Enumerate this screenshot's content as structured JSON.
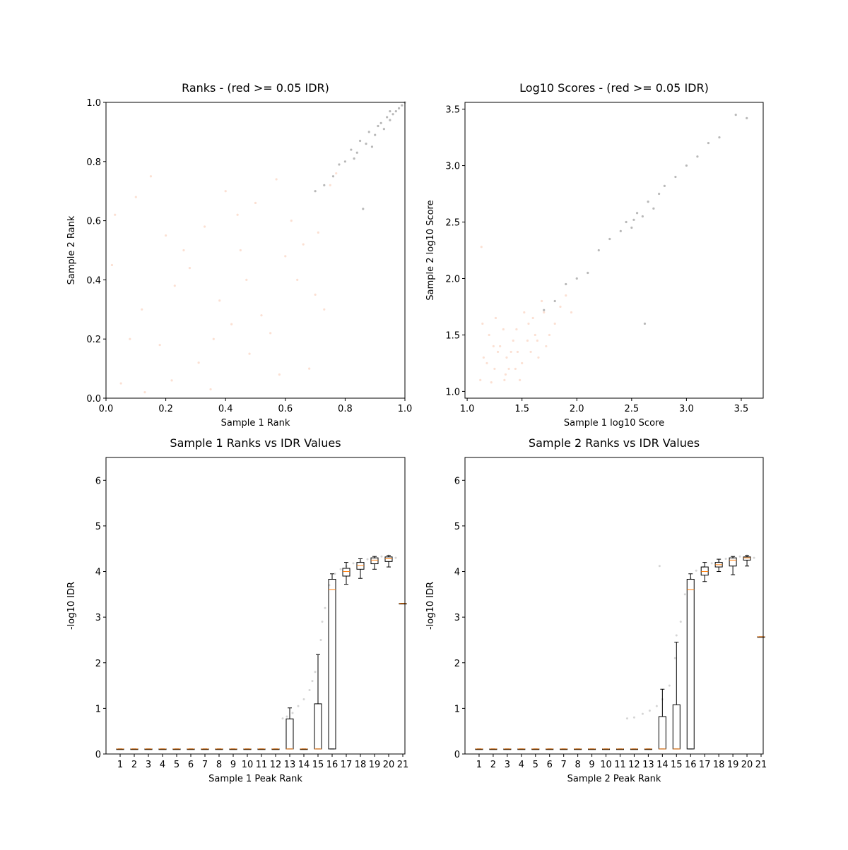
{
  "chart_data": [
    {
      "type": "scatter",
      "title": "Ranks - (red >= 0.05 IDR)",
      "x_label": "Sample 1 Rank",
      "y_label": "Sample 2 Rank",
      "xlim": [
        0,
        1
      ],
      "ylim": [
        0,
        1
      ],
      "xticks": [
        {
          "value": 0,
          "label": "0.0"
        },
        0.2,
        0.4,
        0.6,
        0.8,
        {
          "value": 1,
          "label": "1.0"
        }
      ],
      "yticks": [
        {
          "value": 0,
          "label": "0.0"
        },
        0.2,
        0.4,
        0.6,
        0.8,
        {
          "value": 1,
          "label": "1.0"
        }
      ],
      "series": [
        {
          "color": "#f4a582",
          "x": [
            0.05,
            0.12,
            0.2,
            0.31,
            0.4,
            0.47,
            0.55,
            0.62,
            0.7,
            0.75,
            0.02,
            0.1,
            0.18,
            0.26,
            0.35,
            0.44,
            0.52,
            0.6,
            0.68,
            0.08,
            0.15,
            0.23,
            0.33,
            0.42,
            0.5,
            0.58,
            0.66,
            0.73,
            0.03,
            0.13,
            0.28,
            0.38,
            0.48,
            0.57,
            0.64,
            0.71,
            0.22,
            0.36,
            0.45,
            0.77
          ],
          "y": [
            0.05,
            0.3,
            0.55,
            0.12,
            0.7,
            0.4,
            0.22,
            0.6,
            0.35,
            0.72,
            0.45,
            0.68,
            0.18,
            0.5,
            0.03,
            0.62,
            0.28,
            0.48,
            0.1,
            0.2,
            0.75,
            0.38,
            0.58,
            0.25,
            0.66,
            0.08,
            0.52,
            0.3,
            0.62,
            0.02,
            0.44,
            0.33,
            0.15,
            0.74,
            0.4,
            0.56,
            0.06,
            0.2,
            0.5,
            0.76
          ]
        },
        {
          "color": "#333333",
          "x": [
            0.7,
            0.73,
            0.76,
            0.78,
            0.8,
            0.82,
            0.84,
            0.85,
            0.87,
            0.88,
            0.9,
            0.91,
            0.92,
            0.93,
            0.94,
            0.95,
            0.96,
            0.97,
            0.98,
            0.99,
            0.86,
            0.83,
            0.89,
            0.95,
            1.0
          ],
          "y": [
            0.7,
            0.72,
            0.75,
            0.79,
            0.8,
            0.84,
            0.83,
            0.87,
            0.86,
            0.9,
            0.89,
            0.92,
            0.93,
            0.91,
            0.95,
            0.94,
            0.96,
            0.97,
            0.98,
            0.99,
            0.64,
            0.81,
            0.85,
            0.97,
            1.0
          ]
        }
      ]
    },
    {
      "type": "scatter",
      "title": "Log10 Scores - (red >= 0.05 IDR)",
      "x_label": "Sample 1 log10 Score",
      "y_label": "Sample 2 log10 Score",
      "xlim": [
        0.98,
        3.7
      ],
      "ylim": [
        0.94,
        3.56
      ],
      "xticks": [
        {
          "value": 1,
          "label": "1.0"
        },
        1.5,
        {
          "value": 2,
          "label": "2.0"
        },
        2.5,
        {
          "value": 3,
          "label": "3.0"
        },
        3.5
      ],
      "yticks": [
        {
          "value": 1,
          "label": "1.0"
        },
        1.5,
        {
          "value": 2,
          "label": "2.0"
        },
        2.5,
        {
          "value": 3,
          "label": "3.0"
        },
        3.5
      ],
      "series": [
        {
          "color": "#f4a582",
          "x": [
            1.12,
            1.15,
            1.2,
            1.25,
            1.3,
            1.35,
            1.4,
            1.45,
            1.5,
            1.55,
            1.6,
            1.65,
            1.7,
            1.75,
            1.8,
            1.85,
            1.9,
            1.14,
            1.22,
            1.28,
            1.33,
            1.38,
            1.42,
            1.48,
            1.52,
            1.58,
            1.62,
            1.68,
            1.72,
            1.18,
            1.26,
            1.36,
            1.44,
            1.56,
            1.64,
            1.13,
            1.24,
            1.34,
            1.46,
            1.95
          ],
          "y": [
            1.1,
            1.3,
            1.5,
            1.2,
            1.4,
            1.15,
            1.35,
            1.55,
            1.25,
            1.45,
            1.65,
            1.3,
            1.7,
            1.5,
            1.6,
            1.75,
            1.85,
            1.6,
            1.08,
            1.35,
            1.55,
            1.2,
            1.45,
            1.1,
            1.7,
            1.35,
            1.5,
            1.8,
            1.4,
            1.25,
            1.65,
            1.3,
            1.2,
            1.6,
            1.45,
            2.28,
            1.4,
            1.1,
            1.35,
            1.7
          ]
        },
        {
          "color": "#333333",
          "x": [
            1.7,
            1.8,
            1.9,
            2.0,
            2.1,
            2.2,
            2.3,
            2.4,
            2.45,
            2.5,
            2.55,
            2.6,
            2.65,
            2.7,
            2.75,
            2.8,
            2.9,
            3.0,
            3.1,
            3.2,
            3.3,
            3.45,
            3.55,
            2.62,
            2.52
          ],
          "y": [
            1.72,
            1.8,
            1.95,
            2.0,
            2.05,
            2.25,
            2.35,
            2.42,
            2.5,
            2.45,
            2.58,
            2.55,
            2.68,
            2.62,
            2.75,
            2.82,
            2.9,
            3.0,
            3.08,
            3.2,
            3.25,
            3.45,
            3.42,
            1.6,
            2.52
          ]
        }
      ]
    },
    {
      "type": "box",
      "title": "Sample 1 Ranks vs IDR Values",
      "x_label": "Sample 1 Peak Rank",
      "y_label": "-log10 IDR",
      "xlim": [
        0,
        21.15
      ],
      "ylim": [
        0,
        6.5
      ],
      "xticks": [
        1,
        2,
        3,
        4,
        5,
        6,
        7,
        8,
        9,
        10,
        11,
        12,
        13,
        14,
        15,
        16,
        17,
        18,
        19,
        20,
        21
      ],
      "yticks": [
        0,
        1,
        2,
        3,
        4,
        5,
        6
      ],
      "median_color": "#ff7f0e",
      "x": [
        1,
        2,
        3,
        4,
        5,
        6,
        7,
        8,
        9,
        10,
        11,
        12,
        13,
        14,
        15,
        16,
        17,
        18,
        19,
        20,
        21
      ],
      "boxes": [
        [
          0.11,
          0.11,
          0.11,
          0.11,
          0.11
        ],
        [
          0.11,
          0.11,
          0.11,
          0.11,
          0.11
        ],
        [
          0.11,
          0.11,
          0.11,
          0.11,
          0.11
        ],
        [
          0.11,
          0.11,
          0.11,
          0.11,
          0.11
        ],
        [
          0.11,
          0.11,
          0.11,
          0.11,
          0.11
        ],
        [
          0.11,
          0.11,
          0.11,
          0.11,
          0.11
        ],
        [
          0.11,
          0.11,
          0.11,
          0.11,
          0.11
        ],
        [
          0.11,
          0.11,
          0.11,
          0.11,
          0.11
        ],
        [
          0.11,
          0.11,
          0.11,
          0.11,
          0.11
        ],
        [
          0.11,
          0.11,
          0.11,
          0.11,
          0.11
        ],
        [
          0.11,
          0.11,
          0.11,
          0.11,
          0.11
        ],
        [
          0.11,
          0.11,
          0.11,
          0.11,
          0.11
        ],
        [
          0.11,
          0.11,
          0.11,
          0.77,
          1.01
        ],
        [
          0.11,
          0.11,
          0.11,
          0.11,
          0.11
        ],
        [
          0.11,
          0.11,
          0.11,
          1.1,
          2.18
        ],
        [
          0.11,
          0.11,
          3.6,
          3.83,
          3.95
        ],
        [
          3.72,
          3.9,
          4.0,
          4.07,
          4.2
        ],
        [
          3.85,
          4.05,
          4.13,
          4.2,
          4.28
        ],
        [
          4.05,
          4.17,
          4.25,
          4.3,
          4.33
        ],
        [
          4.1,
          4.22,
          4.28,
          4.32,
          4.35
        ],
        [
          3.3,
          3.3,
          3.3,
          3.3,
          3.3
        ]
      ],
      "points": {
        "color": "#888888",
        "x": [
          12.5,
          12.8,
          13.2,
          13.6,
          14.0,
          14.4,
          14.8,
          15.2,
          15.5,
          15.8,
          16.2,
          16.6,
          17.0,
          17.5,
          18.0,
          18.5,
          19.0,
          19.5,
          20.0,
          20.5,
          14.6,
          15.3
        ],
        "y": [
          0.78,
          0.82,
          0.9,
          1.05,
          1.2,
          1.4,
          1.8,
          2.5,
          3.2,
          3.7,
          3.95,
          4.05,
          4.12,
          4.18,
          4.22,
          4.27,
          4.3,
          4.33,
          4.35,
          4.3,
          1.6,
          2.9
        ]
      }
    },
    {
      "type": "box",
      "title": "Sample 2 Ranks vs IDR Values",
      "x_label": "Sample 2 Peak Rank",
      "y_label": "-log10 IDR",
      "xlim": [
        0,
        21.15
      ],
      "ylim": [
        0,
        6.5
      ],
      "xticks": [
        1,
        2,
        3,
        4,
        5,
        6,
        7,
        8,
        9,
        10,
        11,
        12,
        13,
        14,
        15,
        16,
        17,
        18,
        19,
        20,
        21
      ],
      "yticks": [
        0,
        1,
        2,
        3,
        4,
        5,
        6
      ],
      "median_color": "#ff7f0e",
      "x": [
        1,
        2,
        3,
        4,
        5,
        6,
        7,
        8,
        9,
        10,
        11,
        12,
        13,
        14,
        15,
        16,
        17,
        18,
        19,
        20,
        21
      ],
      "boxes": [
        [
          0.11,
          0.11,
          0.11,
          0.11,
          0.11
        ],
        [
          0.11,
          0.11,
          0.11,
          0.11,
          0.11
        ],
        [
          0.11,
          0.11,
          0.11,
          0.11,
          0.11
        ],
        [
          0.11,
          0.11,
          0.11,
          0.11,
          0.11
        ],
        [
          0.11,
          0.11,
          0.11,
          0.11,
          0.11
        ],
        [
          0.11,
          0.11,
          0.11,
          0.11,
          0.11
        ],
        [
          0.11,
          0.11,
          0.11,
          0.11,
          0.11
        ],
        [
          0.11,
          0.11,
          0.11,
          0.11,
          0.11
        ],
        [
          0.11,
          0.11,
          0.11,
          0.11,
          0.11
        ],
        [
          0.11,
          0.11,
          0.11,
          0.11,
          0.11
        ],
        [
          0.11,
          0.11,
          0.11,
          0.11,
          0.11
        ],
        [
          0.11,
          0.11,
          0.11,
          0.11,
          0.11
        ],
        [
          0.11,
          0.11,
          0.11,
          0.11,
          0.11
        ],
        [
          0.11,
          0.11,
          0.11,
          0.82,
          1.42
        ],
        [
          0.11,
          0.11,
          0.11,
          1.08,
          2.45
        ],
        [
          0.11,
          0.11,
          3.6,
          3.83,
          3.95
        ],
        [
          3.78,
          3.92,
          4.0,
          4.1,
          4.2
        ],
        [
          4.0,
          4.1,
          4.15,
          4.2,
          4.27
        ],
        [
          3.93,
          4.12,
          4.25,
          4.3,
          4.33
        ],
        [
          4.12,
          4.25,
          4.3,
          4.32,
          4.35
        ],
        [
          2.57,
          2.57,
          2.57,
          2.57,
          2.57
        ]
      ],
      "points": {
        "color": "#888888",
        "x": [
          11.5,
          12.0,
          12.6,
          13.1,
          13.6,
          14.0,
          14.5,
          14.9,
          15.3,
          15.6,
          16.0,
          16.4,
          16.9,
          17.5,
          18.0,
          18.5,
          19.0,
          19.5,
          20.0,
          20.5,
          13.8,
          15.0
        ],
        "y": [
          0.78,
          0.8,
          0.88,
          0.95,
          1.05,
          1.2,
          1.5,
          2.1,
          2.9,
          3.5,
          3.85,
          4.02,
          4.1,
          4.18,
          4.22,
          4.28,
          4.3,
          4.33,
          4.35,
          4.3,
          4.12,
          2.6
        ]
      }
    }
  ]
}
